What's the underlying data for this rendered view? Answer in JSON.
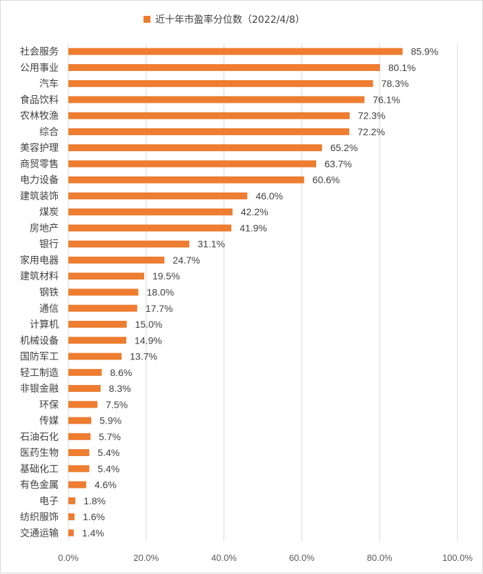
{
  "chart_data": {
    "type": "bar",
    "orientation": "horizontal",
    "legend": {
      "position": "top",
      "label": "近十年市盈率分位数（2022/4/8）",
      "color": "#ED7D31"
    },
    "categories": [
      "社会服务",
      "公用事业",
      "汽车",
      "食品饮料",
      "农林牧渔",
      "综合",
      "美容护理",
      "商贸零售",
      "电力设备",
      "建筑装饰",
      "煤炭",
      "房地产",
      "银行",
      "家用电器",
      "建筑材料",
      "钢铁",
      "通信",
      "计算机",
      "机械设备",
      "国防军工",
      "轻工制造",
      "非银金融",
      "环保",
      "传媒",
      "石油石化",
      "医药生物",
      "基础化工",
      "有色金属",
      "电子",
      "纺织服饰",
      "交通运输"
    ],
    "series": [
      {
        "values": [
          85.9,
          80.1,
          78.3,
          76.1,
          72.3,
          72.2,
          65.2,
          63.7,
          60.6,
          46.0,
          42.2,
          41.9,
          31.1,
          24.7,
          19.5,
          18.0,
          17.7,
          15.0,
          14.9,
          13.7,
          8.6,
          8.3,
          7.5,
          5.9,
          5.7,
          5.4,
          5.4,
          4.6,
          1.8,
          1.6,
          1.4
        ],
        "labels": [
          "85.9%",
          "80.1%",
          "78.3%",
          "76.1%",
          "72.3%",
          "72.2%",
          "65.2%",
          "63.7%",
          "60.6%",
          "46.0%",
          "42.2%",
          "41.9%",
          "31.1%",
          "24.7%",
          "19.5%",
          "18.0%",
          "17.7%",
          "15.0%",
          "14.9%",
          "13.7%",
          "8.6%",
          "8.3%",
          "7.5%",
          "5.9%",
          "5.7%",
          "5.4%",
          "5.4%",
          "4.6%",
          "1.8%",
          "1.6%",
          "1.4%"
        ],
        "color": "#ED7D31"
      }
    ],
    "xlim": [
      0,
      100
    ],
    "xticks": [
      "0.0%",
      "20.0%",
      "40.0%",
      "60.0%",
      "80.0%",
      "100.0%"
    ],
    "grid": true,
    "gridline_color": "#d9d9d9"
  }
}
